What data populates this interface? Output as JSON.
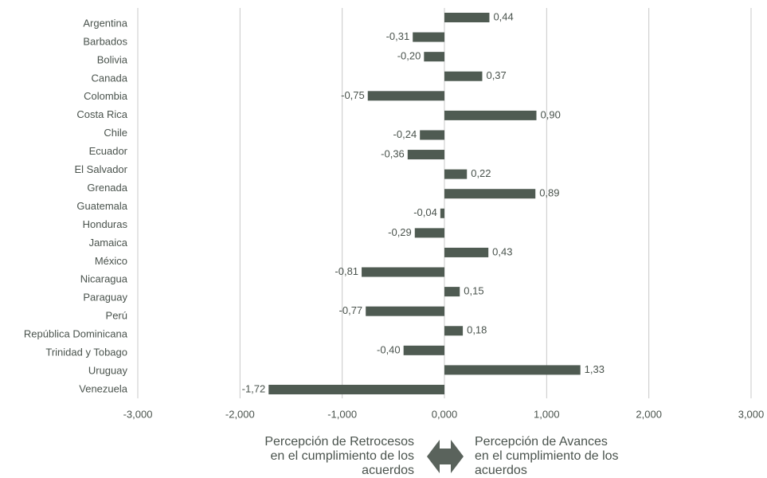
{
  "chart_data": {
    "type": "hbar",
    "categories": [
      "Argentina",
      "Barbados",
      "Bolivia",
      "Canada",
      "Colombia",
      "Costa Rica",
      "Chile",
      "Ecuador",
      "El Salvador",
      "Grenada",
      "Guatemala",
      "Honduras",
      "Jamaica",
      "México",
      "Nicaragua",
      "Paraguay",
      "Perú",
      "República Dominicana",
      "Trinidad y Tobago",
      "Uruguay",
      "Venezuela"
    ],
    "values": [
      0.44,
      -0.31,
      -0.2,
      0.37,
      -0.75,
      0.9,
      -0.24,
      -0.36,
      0.22,
      0.89,
      null,
      -0.04,
      -0.29,
      0.43,
      -0.81,
      0.15,
      -0.77,
      0.18,
      -0.4,
      1.33,
      -1.72
    ],
    "value_labels": [
      "0,44",
      "-0,31",
      "-0,20",
      "0,37",
      "-0,75",
      "0,90",
      "-0,24",
      "-0,36",
      "0,22",
      "0,89",
      null,
      "-0,04",
      "-0,29",
      "0,43",
      "-0,81",
      "0,15",
      "-0,77",
      "0,18",
      "-0,40",
      "1,33",
      "-1,72"
    ],
    "color": "#4f5b52",
    "xlim": [
      -3,
      3
    ],
    "xticks": [
      {
        "value": -3,
        "label": "-3,000"
      },
      {
        "value": -2,
        "label": "-2,000"
      },
      {
        "value": -1,
        "label": "-1,000"
      },
      {
        "value": 0,
        "label": "0,000"
      },
      {
        "value": 1,
        "label": "1,000"
      },
      {
        "value": 2,
        "label": "2,000"
      },
      {
        "value": 3,
        "label": "3,000"
      }
    ],
    "grid": true,
    "left_note": [
      "Percepción de Retrocesos",
      "en el cumplimiento de los",
      "acuerdos"
    ],
    "right_note": [
      "Percepción de Avances",
      "en el cumplimiento de los",
      "acuerdos"
    ]
  }
}
